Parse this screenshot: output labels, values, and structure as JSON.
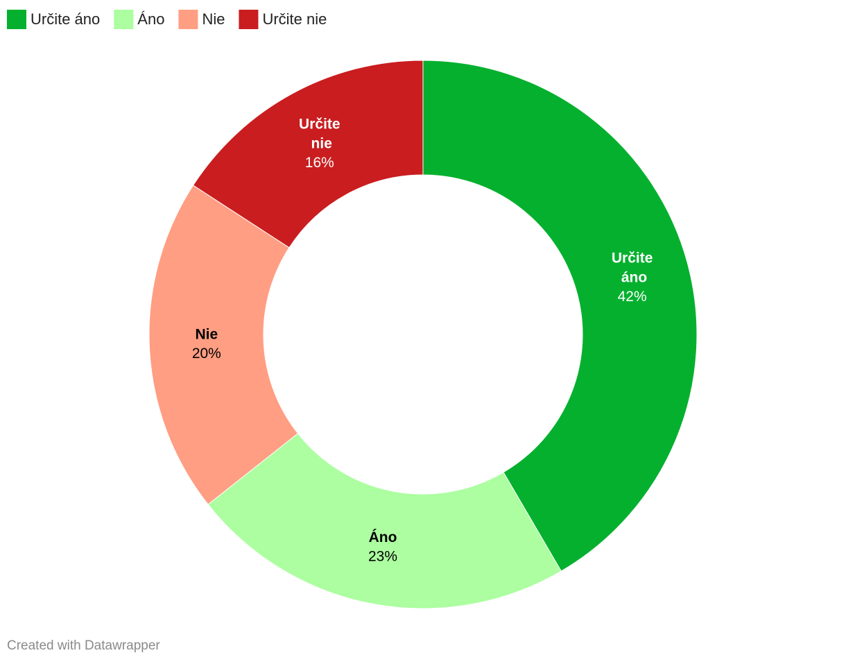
{
  "chart_data": {
    "type": "donut",
    "categories": [
      "Určite áno",
      "Áno",
      "Nie",
      "Určite nie"
    ],
    "values": [
      42,
      23,
      20,
      16
    ],
    "value_labels": [
      "42%",
      "23%",
      "20%",
      "16%"
    ],
    "colors": [
      "#05b02e",
      "#acfea0",
      "#ff9e83",
      "#c91d1f"
    ],
    "footer": "Created with Datawrapper"
  }
}
